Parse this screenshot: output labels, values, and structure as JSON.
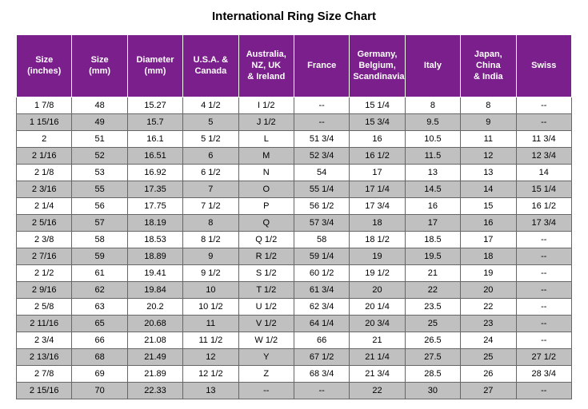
{
  "title": "International Ring Size Chart",
  "header_bg": "#7b1f8c",
  "header_fg": "#ffffff",
  "row_alt_bg": "#c0c0c0",
  "columns": [
    "Size (inches)",
    "Size (mm)",
    "Diameter (mm)",
    "U.S.A. & Canada",
    "Australia, NZ, UK & Ireland",
    "France",
    "Germany, Belgium, Scandinavia",
    "Italy",
    "Japan, China & India",
    "Swiss"
  ],
  "rows": [
    [
      "1  7/8",
      "48",
      "15.27",
      "4  1/2",
      "I  1/2",
      "--",
      "15 1/4",
      "8",
      "8",
      "--"
    ],
    [
      "1 15/16",
      "49",
      "15.7",
      "5",
      "J  1/2",
      "--",
      "15 3/4",
      "9.5",
      "9",
      "--"
    ],
    [
      "2",
      "51",
      "16.1",
      "5  1/2",
      "L",
      "51 3/4",
      "16",
      "10.5",
      "11",
      "11 3/4"
    ],
    [
      "2  1/16",
      "52",
      "16.51",
      "6",
      "M",
      "52 3/4",
      "16 1/2",
      "11.5",
      "12",
      "12 3/4"
    ],
    [
      "2  1/8",
      "53",
      "16.92",
      "6  1/2",
      "N",
      "54",
      "17",
      "13",
      "13",
      "14"
    ],
    [
      "2  3/16",
      "55",
      "17.35",
      "7",
      "O",
      "55 1/4",
      "17 1/4",
      "14.5",
      "14",
      "15 1/4"
    ],
    [
      "2  1/4",
      "56",
      "17.75",
      "7  1/2",
      "P",
      "56 1/2",
      "17 3/4",
      "16",
      "15",
      "16 1/2"
    ],
    [
      "2  5/16",
      "57",
      "18.19",
      "8",
      "Q",
      "57 3/4",
      "18",
      "17",
      "16",
      "17 3/4"
    ],
    [
      "2  3/8",
      "58",
      "18.53",
      "8  1/2",
      "Q 1/2",
      "58",
      "18 1/2",
      "18.5",
      "17",
      "--"
    ],
    [
      "2  7/16",
      "59",
      "18.89",
      "9",
      "R 1/2",
      "59 1/4",
      "19",
      "19.5",
      "18",
      "--"
    ],
    [
      "2  1/2",
      "61",
      "19.41",
      "9  1/2",
      "S 1/2",
      "60 1/2",
      "19 1/2",
      "21",
      "19",
      "--"
    ],
    [
      "2  9/16",
      "62",
      "19.84",
      "10",
      "T 1/2",
      "61 3/4",
      "20",
      "22",
      "20",
      "--"
    ],
    [
      "2  5/8",
      "63",
      "20.2",
      "10 1/2",
      "U 1/2",
      "62 3/4",
      "20 1/4",
      "23.5",
      "22",
      "--"
    ],
    [
      "2 11/16",
      "65",
      "20.68",
      "11",
      "V 1/2",
      "64 1/4",
      "20 3/4",
      "25",
      "23",
      "--"
    ],
    [
      "2  3/4",
      "66",
      "21.08",
      "11 1/2",
      "W 1/2",
      "66",
      "21",
      "26.5",
      "24",
      "--"
    ],
    [
      "2 13/16",
      "68",
      "21.49",
      "12",
      "Y",
      "67 1/2",
      "21 1/4",
      "27.5",
      "25",
      "27 1/2"
    ],
    [
      "2  7/8",
      "69",
      "21.89",
      "12 1/2",
      "Z",
      "68 3/4",
      "21 3/4",
      "28.5",
      "26",
      "28 3/4"
    ],
    [
      "2 15/16",
      "70",
      "22.33",
      "13",
      "--",
      "--",
      "22",
      "30",
      "27",
      "--"
    ]
  ]
}
